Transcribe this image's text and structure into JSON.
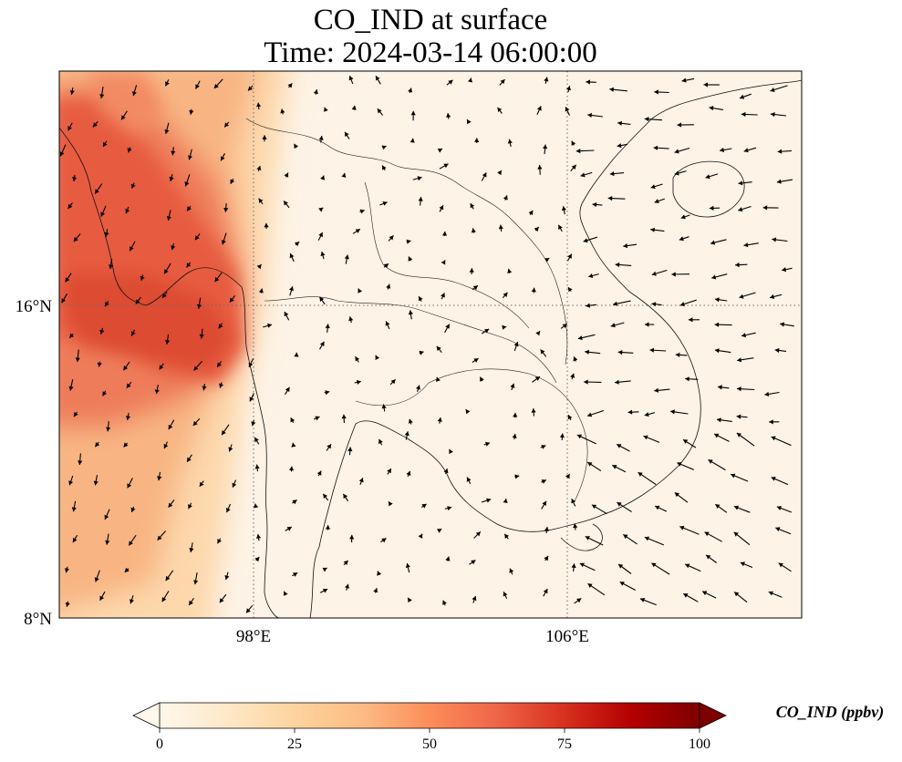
{
  "title_line1": "CO_IND at surface",
  "title_line2": "Time: 2024-03-14 06:00:00",
  "map": {
    "lon_range": [
      93,
      112
    ],
    "lat_range": [
      8,
      22
    ],
    "lon_ticks": [
      "98°E",
      "106°E"
    ],
    "lat_ticks": [
      "16°N",
      "8°N"
    ],
    "gridlines": "dotted",
    "coastlines": true,
    "country_borders": true,
    "wind_vectors": true,
    "high_concentration_region": "Andaman Sea / Bay of Bengal (west)"
  },
  "colorbar": {
    "label": "CO_IND (ppbv)",
    "ticks": [
      "0",
      "25",
      "50",
      "75",
      "100"
    ],
    "min": 0,
    "max": 100,
    "extend": "both",
    "colormap": "OrRd",
    "colors": [
      "#fff7ec",
      "#fee8c8",
      "#fdd49e",
      "#fdbb84",
      "#fc8d59",
      "#ef6548",
      "#d7301f",
      "#b30000",
      "#7f0000"
    ]
  },
  "chart_data": {
    "type": "heatmap",
    "variable": "CO_IND",
    "units": "ppbv",
    "level": "surface",
    "time": "2024-03-14 06:00:00",
    "x_axis": "longitude",
    "y_axis": "latitude",
    "xlim": [
      93,
      112
    ],
    "ylim": [
      8,
      22
    ],
    "x_ticks": [
      98,
      106
    ],
    "y_ticks": [
      16,
      8
    ],
    "value_range": [
      0,
      100
    ],
    "peak_value_approx": 70,
    "peak_location_approx": {
      "lon": 96,
      "lat": 15.8
    },
    "grid": true
  }
}
